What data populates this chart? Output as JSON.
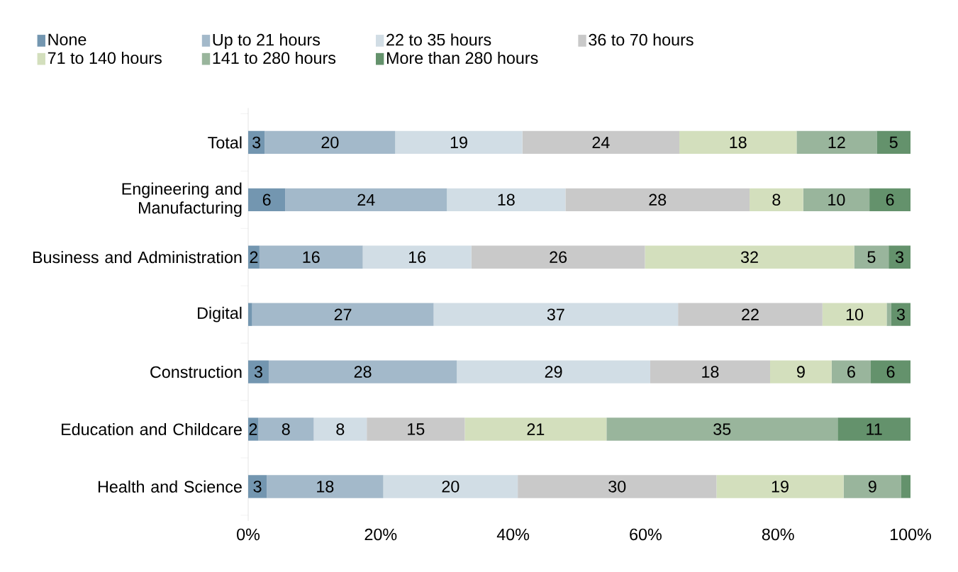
{
  "chart_data": {
    "type": "bar",
    "orientation": "horizontal",
    "stacked": true,
    "legend": "top",
    "grid": false,
    "categories": [
      "Total",
      "Engineering and Manufacturing",
      "Business and Administration",
      "Digital",
      "Construction",
      "Education and Childcare",
      "Health and Science"
    ],
    "xlim": [
      0,
      100
    ],
    "xticks": [
      {
        "value": 0,
        "label": "0%"
      },
      {
        "value": 20,
        "label": "20%"
      },
      {
        "value": 40,
        "label": "40%"
      },
      {
        "value": 60,
        "label": "60%"
      },
      {
        "value": 80,
        "label": "80%"
      },
      {
        "value": 100,
        "label": "100%"
      }
    ],
    "series": [
      {
        "name": "None",
        "color": "#7396b0",
        "values": [
          2.5,
          5.6,
          1.7,
          0.6,
          3.1,
          1.5,
          2.8
        ],
        "value_labels": [
          "3",
          "6",
          "2",
          null,
          "3",
          "2",
          "3"
        ]
      },
      {
        "name": "Up to 21 hours",
        "color": "#a3b9ca",
        "values": [
          19.7,
          24.4,
          15.6,
          27.4,
          28.4,
          8.4,
          17.6
        ],
        "value_labels": [
          "20",
          "24",
          "16",
          "27",
          "28",
          "8",
          "18"
        ]
      },
      {
        "name": "22 to 35 hours",
        "color": "#d1dde5",
        "values": [
          19.2,
          17.9,
          16.4,
          36.9,
          29.2,
          8.0,
          20.3
        ],
        "value_labels": [
          "19",
          "18",
          "16",
          "37",
          "29",
          "8",
          "20"
        ]
      },
      {
        "name": "36 to 70 hours",
        "color": "#c9c9c9",
        "values": [
          23.7,
          27.8,
          26.2,
          21.8,
          18.1,
          14.8,
          30.0
        ],
        "value_labels": [
          "24",
          "28",
          "26",
          "22",
          "18",
          "15",
          "30"
        ]
      },
      {
        "name": "71 to 140 hours",
        "color": "#d3dfbd",
        "values": [
          17.7,
          8.1,
          31.6,
          9.7,
          9.3,
          21.4,
          19.2
        ],
        "value_labels": [
          "18",
          "8",
          "32",
          "10",
          "9",
          "21",
          "19"
        ]
      },
      {
        "name": "141 to 280 hours",
        "color": "#99b59c",
        "values": [
          12.1,
          10.0,
          5.2,
          0.7,
          5.9,
          34.9,
          8.7
        ],
        "value_labels": [
          "12",
          "10",
          "5",
          null,
          "6",
          "35",
          "9"
        ]
      },
      {
        "name": "More than 280 hours",
        "color": "#64926c",
        "values": [
          5.1,
          6.2,
          3.3,
          2.9,
          6.0,
          11.0,
          1.4
        ],
        "value_labels": [
          "5",
          "6",
          "3",
          "3",
          "6",
          "11",
          null
        ]
      }
    ]
  }
}
